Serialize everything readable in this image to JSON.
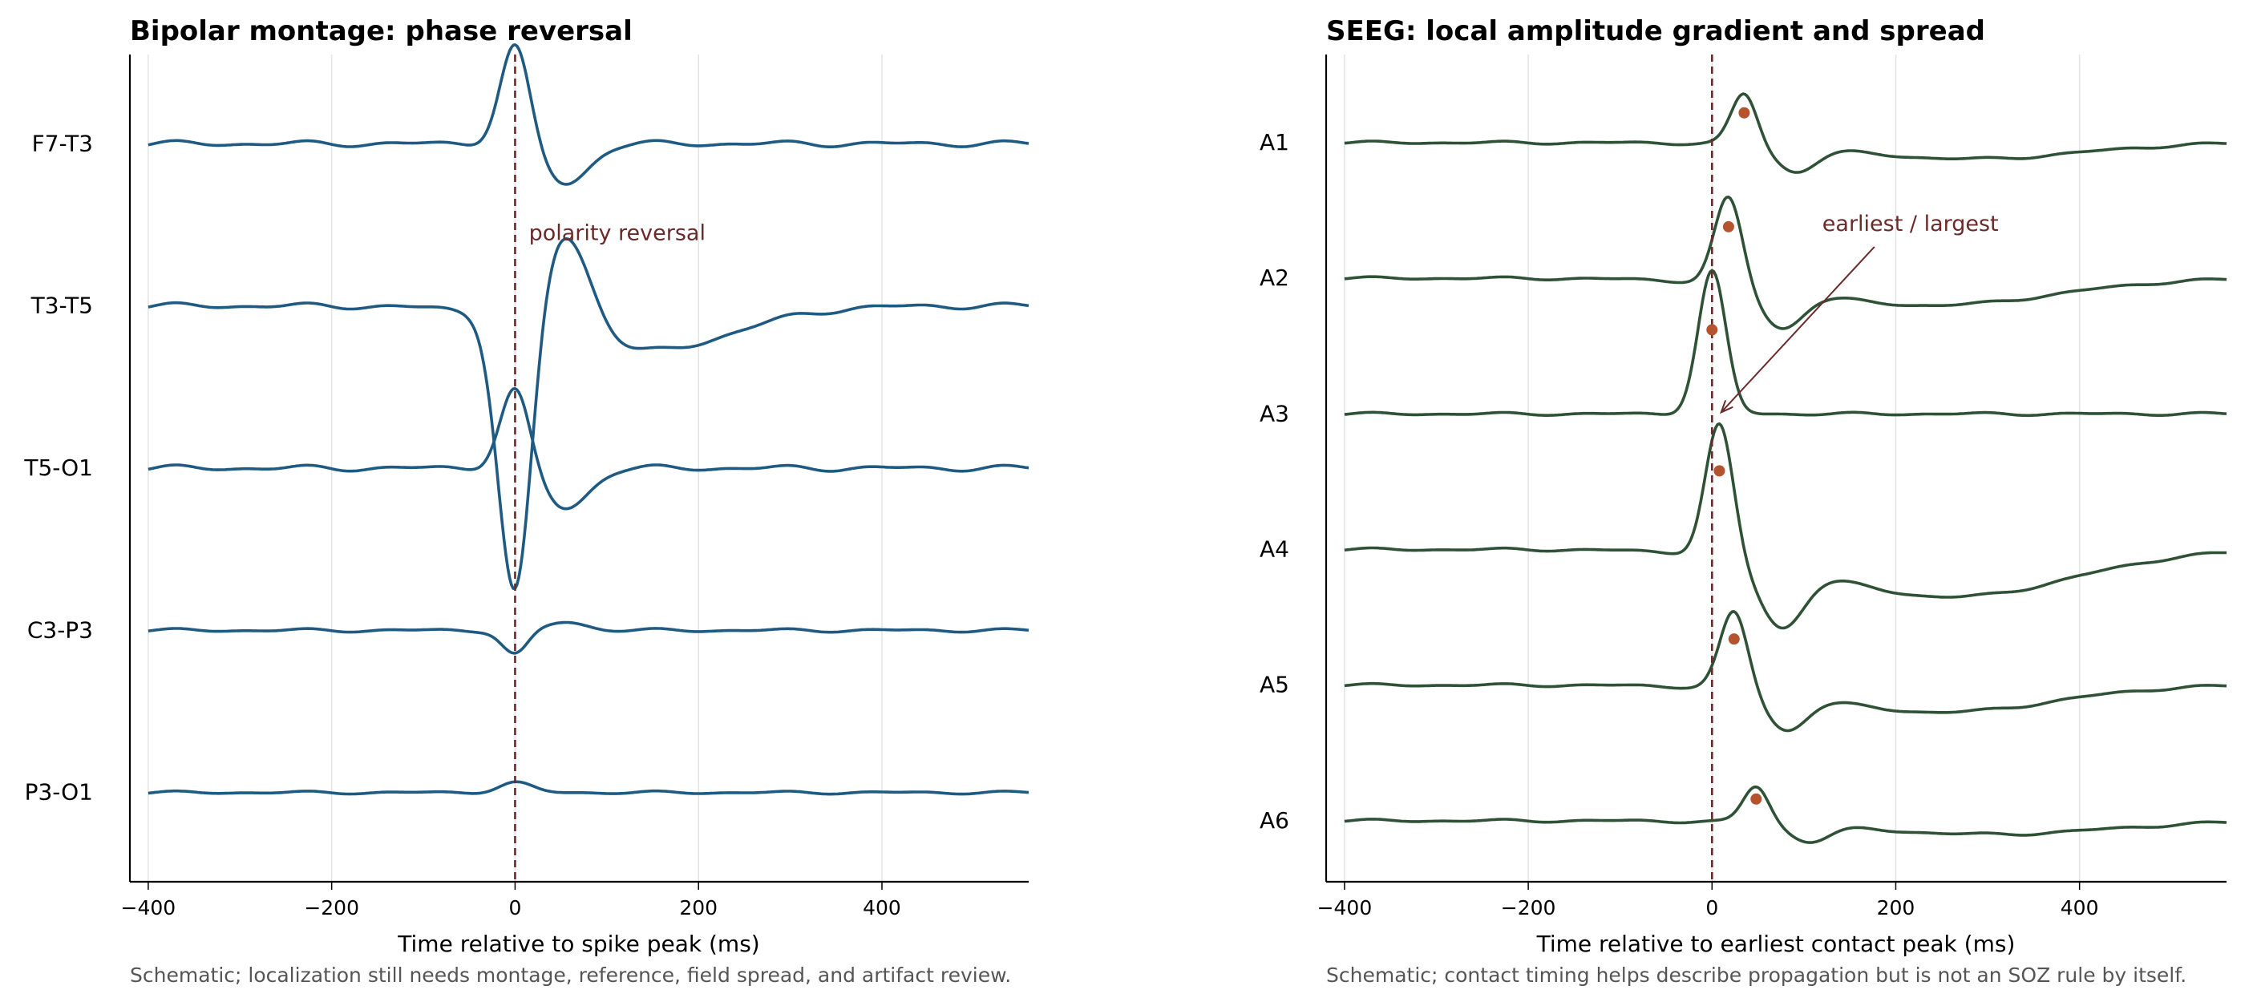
{
  "colors": {
    "scalp_trace": "#1f5a82",
    "seeg_trace": "#2f5136",
    "marker": "#6b2a2a",
    "peak_dot": "#b5532e",
    "grid": "#e3e3e3",
    "axis": "#000000",
    "caption": "#555555"
  },
  "chart_data": [
    {
      "type": "line",
      "title": "Bipolar montage: phase reversal",
      "xlabel": "Time relative to spike peak (ms)",
      "caption": "Schematic; localization still needs montage, reference, field spread, and artifact review.",
      "xlim": [
        -420,
        560
      ],
      "xticks": [
        -400,
        -200,
        0,
        200,
        400
      ],
      "xtick_labels": [
        "−400",
        "−200",
        "0",
        "200",
        "400"
      ],
      "grid": "vertical",
      "marker_line_x": 0,
      "annotation": {
        "text": "polarity reversal",
        "x": 15,
        "channel": 0,
        "y_offset": -0.55
      },
      "series": [
        {
          "name": "F7-T3",
          "offset": 4,
          "background": 1.0,
          "components": [
            {
              "t": 0,
              "a": 0.62,
              "w": 16
            },
            {
              "t": 55,
              "a": -0.25,
              "w": 25
            }
          ]
        },
        {
          "name": "T3-T5",
          "offset": 3,
          "background": 1.0,
          "components": [
            {
              "t": 0,
              "a": -1.75,
              "w": 18
            },
            {
              "t": 55,
              "a": 0.62,
              "w": 28
            },
            {
              "t": 140,
              "a": -0.28,
              "w": 95
            }
          ]
        },
        {
          "name": "T5-O1",
          "offset": 2,
          "background": 1.0,
          "components": [
            {
              "t": 0,
              "a": 0.5,
              "w": 16
            },
            {
              "t": 55,
              "a": -0.25,
              "w": 25
            }
          ]
        },
        {
          "name": "C3-P3",
          "offset": 1,
          "background": 0.6,
          "components": [
            {
              "t": 0,
              "a": -0.15,
              "w": 14
            },
            {
              "t": 55,
              "a": 0.05,
              "w": 22
            }
          ]
        },
        {
          "name": "P3-O1",
          "offset": 0,
          "background": 0.5,
          "components": [
            {
              "t": 0,
              "a": 0.06,
              "w": 18
            }
          ]
        }
      ]
    },
    {
      "type": "line",
      "title": "SEEG: local amplitude gradient and spread",
      "xlabel": "Time relative to earliest contact peak (ms)",
      "caption": "Schematic; contact timing helps describe propagation but is not an SOZ rule by itself.",
      "xlim": [
        -420,
        560
      ],
      "xticks": [
        -400,
        -200,
        0,
        200,
        400
      ],
      "xtick_labels": [
        "−400",
        "−200",
        "0",
        "200",
        "400"
      ],
      "grid": "vertical",
      "marker_line_x": 0,
      "annotation": {
        "text": "earliest / largest",
        "text_x": 120,
        "text_y": 4.35,
        "arrow_to_x": 10,
        "arrow_to_y": 3.0
      },
      "series": [
        {
          "name": "A1",
          "offset": 5,
          "background": 0.6,
          "peak": 35,
          "dot_y": 0.22,
          "components": [
            {
              "t": 35,
              "a": 0.38,
              "w": 14
            },
            {
              "t": 90,
              "a": -0.18,
              "w": 22
            },
            {
              "t": 280,
              "a": -0.12,
              "w": 120
            }
          ]
        },
        {
          "name": "A2",
          "offset": 4,
          "background": 0.6,
          "peak": 18,
          "dot_y": 0.38,
          "components": [
            {
              "t": 18,
              "a": 0.65,
              "w": 15
            },
            {
              "t": 75,
              "a": -0.28,
              "w": 23
            },
            {
              "t": 240,
              "a": -0.2,
              "w": 130
            }
          ]
        },
        {
          "name": "A3",
          "offset": 3,
          "background": 0.6,
          "peak": 0,
          "dot_y": 0.62,
          "components": [
            {
              "t": 0,
              "a": 1.05,
              "w": 15
            }
          ]
        },
        {
          "name": "A4",
          "offset": 2,
          "background": 0.6,
          "peak": 8,
          "dot_y": 0.58,
          "components": [
            {
              "t": 8,
              "a": 0.98,
              "w": 15
            },
            {
              "t": 75,
              "a": -0.45,
              "w": 24
            },
            {
              "t": 260,
              "a": -0.35,
              "w": 130
            }
          ]
        },
        {
          "name": "A5",
          "offset": 1,
          "background": 0.6,
          "peak": 24,
          "dot_y": 0.34,
          "components": [
            {
              "t": 24,
              "a": 0.58,
              "w": 15
            },
            {
              "t": 80,
              "a": -0.26,
              "w": 22
            },
            {
              "t": 250,
              "a": -0.2,
              "w": 120
            }
          ]
        },
        {
          "name": "A6",
          "offset": 0,
          "background": 0.6,
          "peak": 48,
          "dot_y": 0.16,
          "components": [
            {
              "t": 48,
              "a": 0.27,
              "w": 14
            },
            {
              "t": 105,
              "a": -0.12,
              "w": 22
            },
            {
              "t": 300,
              "a": -0.1,
              "w": 130
            }
          ]
        }
      ]
    }
  ]
}
